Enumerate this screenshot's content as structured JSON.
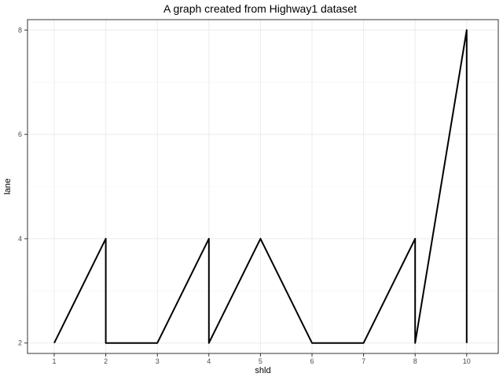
{
  "chart_data": {
    "type": "line",
    "title": "A graph created from Highway1 dataset",
    "xlabel": "shld",
    "ylabel": "lane",
    "x_scale": "categorical",
    "categories": [
      "1",
      "2",
      "3",
      "4",
      "5",
      "6",
      "7",
      "8",
      "10"
    ],
    "ylim": [
      1.8,
      8.2
    ],
    "y_ticks": [
      2,
      4,
      6,
      8
    ],
    "grid": true,
    "theme": "bw",
    "series": [
      {
        "color": "#000000",
        "points": [
          {
            "x": "1",
            "y": 2
          },
          {
            "x": "2",
            "y": 4
          },
          {
            "x": "2",
            "y": 2
          },
          {
            "x": "3",
            "y": 2
          },
          {
            "x": "4",
            "y": 4
          },
          {
            "x": "4",
            "y": 2
          },
          {
            "x": "5",
            "y": 4
          },
          {
            "x": "6",
            "y": 2
          },
          {
            "x": "7",
            "y": 2
          },
          {
            "x": "8",
            "y": 4
          },
          {
            "x": "8",
            "y": 2
          },
          {
            "x": "10",
            "y": 8
          },
          {
            "x": "10",
            "y": 2
          }
        ]
      }
    ]
  }
}
